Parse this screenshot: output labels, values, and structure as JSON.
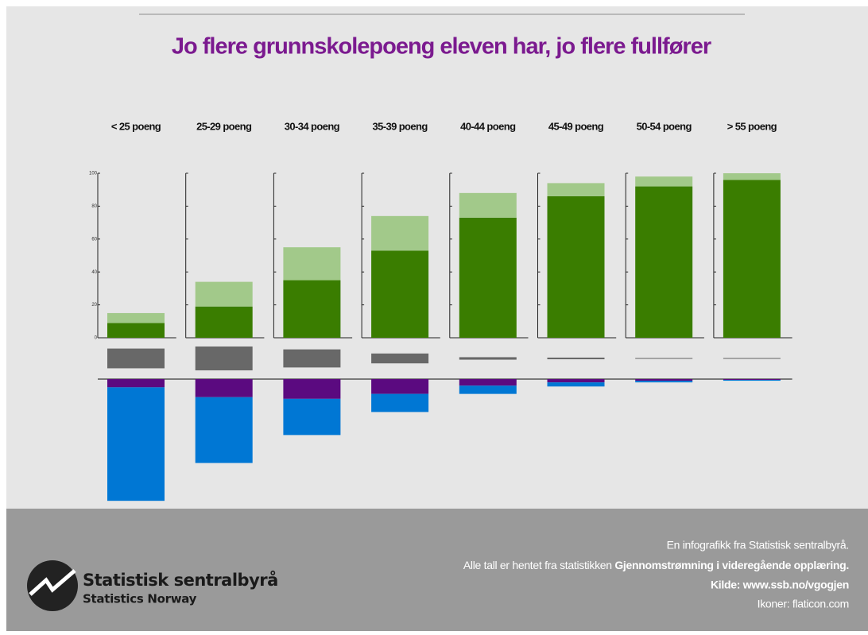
{
  "chart_data": {
    "type": "bar",
    "title": "Jo flere grunnskolepoeng eleven har, jo flere fullfører",
    "categories": [
      "< 25 poeng",
      "25-29 poeng",
      "30-34 poeng",
      "35-39 poeng",
      "40-44 poeng",
      "45-49 poeng",
      "50-54 poeng",
      "> 55 poeng"
    ],
    "ylim": [
      0,
      100
    ],
    "yticks": [
      0,
      20,
      40,
      60,
      80,
      100
    ],
    "series": [
      {
        "color": "#3a7d00",
        "values": [
          9,
          19,
          35,
          53,
          73,
          86,
          92,
          96
        ]
      },
      {
        "color": "#a2c98a",
        "values": [
          6,
          15,
          20,
          21,
          15,
          8,
          6,
          4
        ]
      },
      {
        "color": "#686868",
        "values": [
          12,
          14.5,
          11,
          6,
          1.5,
          1,
          0.5,
          0.5
        ]
      },
      {
        "color": "#5b0a80",
        "values": [
          5,
          11,
          12,
          9,
          4,
          2,
          1,
          0.5
        ]
      },
      {
        "color": "#0077d4",
        "values": [
          69,
          40,
          22,
          11,
          5,
          2.5,
          1,
          0.5
        ]
      }
    ]
  },
  "footer": {
    "line1": "En infografikk fra Statistisk sentralbyrå.",
    "line2": "Alle tall er hentet fra statistikken ",
    "line2_bold": "Gjennomstrømning i videregående opplæring.",
    "line3": "Kilde: www.ssb.no/vgogjen",
    "line4": "Ikoner: flaticon.com",
    "logo_name": "Statistisk sentralbyrå",
    "logo_sub": "Statistics Norway"
  }
}
